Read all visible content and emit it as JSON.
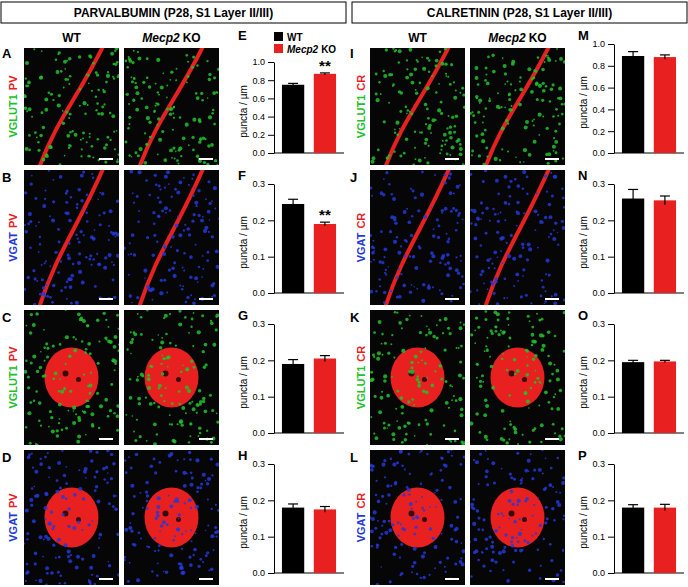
{
  "figure": {
    "headers": [
      "PARVALBUMIN (P28, S1 Layer II/III)",
      "CALRETININ (P28, S1 Layer II/III)"
    ],
    "columns": [
      "WT",
      "Mecp2 KO"
    ],
    "image_rows": [
      {
        "letter": "A",
        "channels": [
          {
            "text": "VGLUT1",
            "color": "#22c02b"
          },
          {
            "text": "PV",
            "color": "#e8201f"
          }
        ]
      },
      {
        "letter": "B",
        "channels": [
          {
            "text": "VGAT",
            "color": "#2438d8"
          },
          {
            "text": "PV",
            "color": "#e8201f"
          }
        ]
      },
      {
        "letter": "C",
        "channels": [
          {
            "text": "VGLUT1",
            "color": "#22c02b"
          },
          {
            "text": "PV",
            "color": "#e8201f"
          }
        ]
      },
      {
        "letter": "D",
        "channels": [
          {
            "text": "VGAT",
            "color": "#2438d8"
          },
          {
            "text": "PV",
            "color": "#e8201f"
          }
        ]
      },
      {
        "letter": "I",
        "channels": [
          {
            "text": "VGLUT1",
            "color": "#22c02b"
          },
          {
            "text": "CR",
            "color": "#e8201f"
          }
        ]
      },
      {
        "letter": "J",
        "channels": [
          {
            "text": "VGAT",
            "color": "#2438d8"
          },
          {
            "text": "CR",
            "color": "#e8201f"
          }
        ]
      },
      {
        "letter": "K",
        "channels": [
          {
            "text": "VGLUT1",
            "color": "#22c02b"
          },
          {
            "text": "CR",
            "color": "#e8201f"
          }
        ]
      },
      {
        "letter": "L",
        "channels": [
          {
            "text": "VGAT",
            "color": "#2438d8"
          },
          {
            "text": "CR",
            "color": "#e8201f"
          }
        ]
      }
    ]
  },
  "chart_data": [
    {
      "type": "bar",
      "panel": "E",
      "ylabel": "puncta / µm",
      "categories": [
        null
      ],
      "legend": "top-left",
      "series": [
        {
          "name": "WT",
          "color": "#000000",
          "values": [
            0.75
          ],
          "errors": [
            0.015
          ]
        },
        {
          "name": "Mecp2 KO",
          "color": "#e8201f",
          "values": [
            0.87
          ],
          "errors": [
            0.01
          ]
        }
      ],
      "annotations": [
        {
          "text": "**",
          "series": 1
        }
      ],
      "ylim": [
        0,
        1
      ],
      "yticks": [
        {
          "value": 0,
          "label": "0.0"
        },
        {
          "value": 0.2,
          "label": "0.2"
        },
        {
          "value": 0.4,
          "label": "0.4"
        },
        {
          "value": 0.6,
          "label": "0.6"
        },
        {
          "value": 0.8,
          "label": "0.8"
        },
        {
          "value": 1,
          "label": "1.0"
        }
      ]
    },
    {
      "type": "bar",
      "panel": "F",
      "ylabel": "puncta / µm",
      "categories": [
        null
      ],
      "series": [
        {
          "name": "WT",
          "color": "#000000",
          "values": [
            0.245
          ],
          "errors": [
            0.013
          ]
        },
        {
          "name": "Mecp2 KO",
          "color": "#e8201f",
          "values": [
            0.19
          ],
          "errors": [
            0.005
          ]
        }
      ],
      "annotations": [
        {
          "text": "**",
          "series": 1
        }
      ],
      "ylim": [
        0,
        0.3
      ],
      "yticks": [
        {
          "value": 0,
          "label": "0.0"
        },
        {
          "value": 0.1,
          "label": "0.1"
        },
        {
          "value": 0.2,
          "label": "0.2"
        },
        {
          "value": 0.3,
          "label": "0.3"
        }
      ]
    },
    {
      "type": "bar",
      "panel": "G",
      "ylabel": "puncta / µm",
      "categories": [
        null
      ],
      "series": [
        {
          "name": "WT",
          "color": "#000000",
          "values": [
            0.19
          ],
          "errors": [
            0.012
          ]
        },
        {
          "name": "Mecp2 KO",
          "color": "#e8201f",
          "values": [
            0.205
          ],
          "errors": [
            0.008
          ]
        }
      ],
      "ylim": [
        0,
        0.3
      ],
      "yticks": [
        {
          "value": 0,
          "label": "0.0"
        },
        {
          "value": 0.1,
          "label": "0.1"
        },
        {
          "value": 0.2,
          "label": "0.2"
        },
        {
          "value": 0.3,
          "label": "0.3"
        }
      ]
    },
    {
      "type": "bar",
      "panel": "H",
      "ylabel": "puncta / µm",
      "categories": [
        null
      ],
      "series": [
        {
          "name": "WT",
          "color": "#000000",
          "values": [
            0.18
          ],
          "errors": [
            0.01
          ]
        },
        {
          "name": "Mecp2 KO",
          "color": "#e8201f",
          "values": [
            0.175
          ],
          "errors": [
            0.008
          ]
        }
      ],
      "ylim": [
        0,
        0.3
      ],
      "yticks": [
        {
          "value": 0,
          "label": "0.0"
        },
        {
          "value": 0.1,
          "label": "0.1"
        },
        {
          "value": 0.2,
          "label": "0.2"
        },
        {
          "value": 0.3,
          "label": "0.3"
        }
      ]
    },
    {
      "type": "bar",
      "panel": "M",
      "ylabel": "puncta / µm",
      "categories": [
        null
      ],
      "series": [
        {
          "name": "WT",
          "color": "#000000",
          "values": [
            0.89
          ],
          "errors": [
            0.04
          ]
        },
        {
          "name": "Mecp2 KO",
          "color": "#e8201f",
          "values": [
            0.88
          ],
          "errors": [
            0.02
          ]
        }
      ],
      "ylim": [
        0,
        1
      ],
      "yticks": [
        {
          "value": 0,
          "label": "0.0"
        },
        {
          "value": 0.2,
          "label": "0.2"
        },
        {
          "value": 0.4,
          "label": "0.4"
        },
        {
          "value": 0.6,
          "label": "0.6"
        },
        {
          "value": 0.8,
          "label": "0.8"
        },
        {
          "value": 1,
          "label": "1.0"
        }
      ]
    },
    {
      "type": "bar",
      "panel": "N",
      "ylabel": "puncta / µm",
      "categories": [
        null
      ],
      "series": [
        {
          "name": "WT",
          "color": "#000000",
          "values": [
            0.26
          ],
          "errors": [
            0.025
          ]
        },
        {
          "name": "Mecp2 KO",
          "color": "#e8201f",
          "values": [
            0.255
          ],
          "errors": [
            0.012
          ]
        }
      ],
      "ylim": [
        0,
        0.3
      ],
      "yticks": [
        {
          "value": 0,
          "label": "0.0"
        },
        {
          "value": 0.1,
          "label": "0.1"
        },
        {
          "value": 0.2,
          "label": "0.2"
        },
        {
          "value": 0.3,
          "label": "0.3"
        }
      ]
    },
    {
      "type": "bar",
      "panel": "O",
      "ylabel": "puncta / µm",
      "categories": [
        null
      ],
      "series": [
        {
          "name": "WT",
          "color": "#000000",
          "values": [
            0.195
          ],
          "errors": [
            0.005
          ]
        },
        {
          "name": "Mecp2 KO",
          "color": "#e8201f",
          "values": [
            0.197
          ],
          "errors": [
            0.003
          ]
        }
      ],
      "ylim": [
        0,
        0.3
      ],
      "yticks": [
        {
          "value": 0,
          "label": "0.0"
        },
        {
          "value": 0.1,
          "label": "0.1"
        },
        {
          "value": 0.2,
          "label": "0.2"
        },
        {
          "value": 0.3,
          "label": "0.3"
        }
      ]
    },
    {
      "type": "bar",
      "panel": "P",
      "ylabel": "puncta / µm",
      "categories": [
        null
      ],
      "series": [
        {
          "name": "WT",
          "color": "#000000",
          "values": [
            0.18
          ],
          "errors": [
            0.008
          ]
        },
        {
          "name": "Mecp2 KO",
          "color": "#e8201f",
          "values": [
            0.18
          ],
          "errors": [
            0.009
          ]
        }
      ],
      "ylim": [
        0,
        0.3
      ],
      "yticks": [
        {
          "value": 0,
          "label": "0.0"
        },
        {
          "value": 0.1,
          "label": "0.1"
        },
        {
          "value": 0.2,
          "label": "0.2"
        },
        {
          "value": 0.3,
          "label": "0.3"
        }
      ]
    }
  ]
}
